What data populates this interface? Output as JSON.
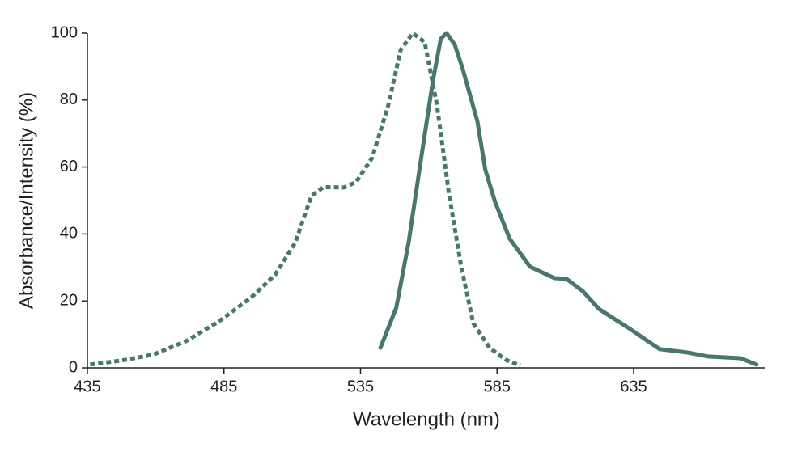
{
  "chart_data": {
    "type": "line",
    "x_label": "Wavelength (nm)",
    "y_label": "Absorbance/Intensity (%)",
    "xlim": [
      435,
      683
    ],
    "ylim": [
      0,
      100
    ],
    "xticks": [
      435,
      485,
      535,
      585,
      635
    ],
    "yticks": [
      0,
      20,
      40,
      60,
      80,
      100
    ],
    "series": [
      {
        "color": "#4a7670",
        "line_style": "dotted",
        "x": [
          436,
          447.4,
          459.3,
          471.1,
          483,
          494.9,
          503.7,
          511.1,
          517,
          521.5,
          528.9,
          533.4,
          539.3,
          545.2,
          549.7,
          554.1,
          558.5,
          563,
          567.4,
          571.9,
          576.3,
          582.3,
          588.2,
          593.5
        ],
        "values": [
          1,
          2.2,
          4,
          8,
          13.8,
          21,
          27.8,
          37.4,
          51.4,
          54,
          53.9,
          55.5,
          62.8,
          78.5,
          95,
          100,
          97.3,
          78.5,
          52,
          30.2,
          13.3,
          6,
          2.4,
          0.7
        ]
      },
      {
        "color": "#4a7670",
        "line_style": "solid",
        "x": [
          542.3,
          548.1,
          552.6,
          557,
          561.5,
          564.4,
          566.5,
          569.5,
          572.4,
          577.8,
          580.7,
          584.3,
          589.6,
          597.1,
          606,
          610.4,
          616.4,
          622.3,
          634.1,
          644.5,
          654.8,
          662.3,
          674.1,
          680
        ],
        "values": [
          6,
          18,
          37.4,
          61.6,
          85.7,
          98.3,
          100,
          96.6,
          89.4,
          73.7,
          59.2,
          49.5,
          38.6,
          30.2,
          26.8,
          26.6,
          22.9,
          17.6,
          11.4,
          5.6,
          4.6,
          3.4,
          2.9,
          1
        ]
      }
    ]
  }
}
